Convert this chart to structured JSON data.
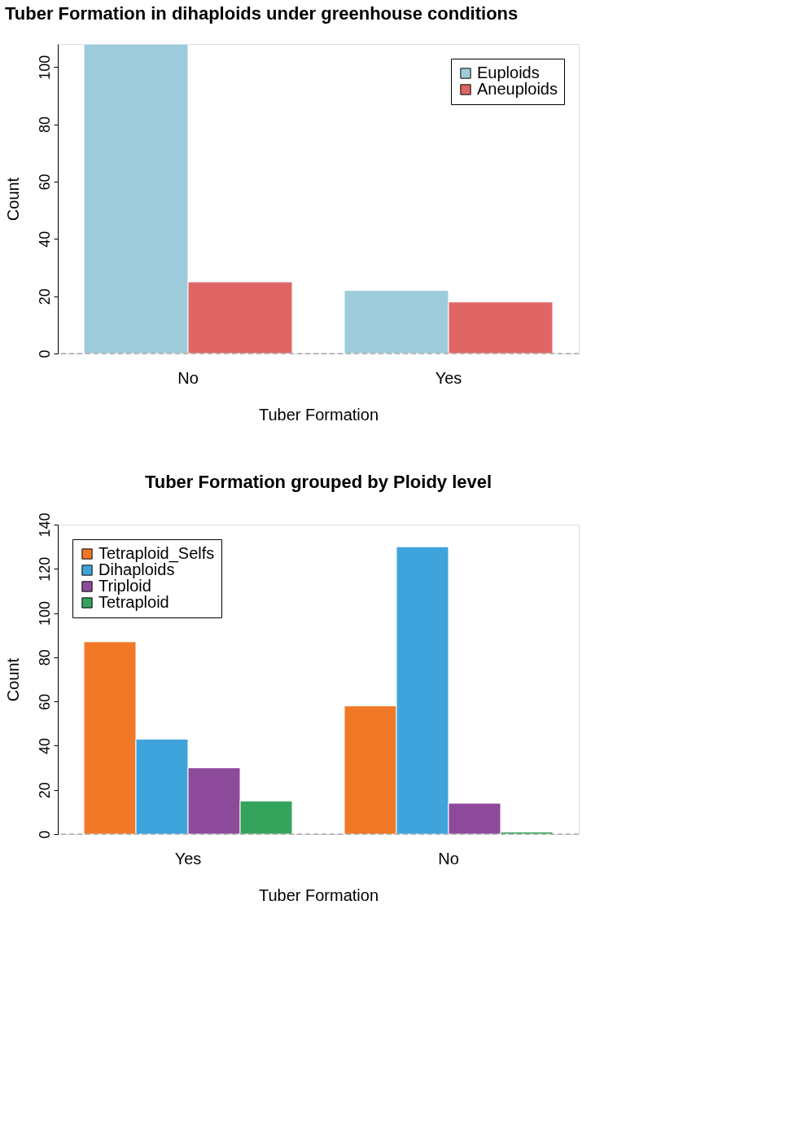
{
  "chart_data": [
    {
      "type": "bar",
      "title": "Tuber Formation in dihaploids under greenhouse conditions",
      "xlabel": "Tuber Formation",
      "ylabel": "Count",
      "categories": [
        "No",
        "Yes"
      ],
      "series": [
        {
          "name": "Euploids",
          "color": "#9ecbdb",
          "values": [
            108,
            22
          ]
        },
        {
          "name": "Aneuploids",
          "color": "#e06666",
          "values": [
            25,
            18
          ]
        }
      ],
      "ylim": [
        0,
        108
      ],
      "yticks": [
        0,
        20,
        40,
        60,
        80,
        100
      ],
      "grid": false,
      "legend": "top right",
      "ref_lines": [
        {
          "axis": "y",
          "value": 0,
          "line_style": "dashed",
          "color": "#888888"
        }
      ]
    },
    {
      "type": "bar",
      "title": "Tuber Formation grouped by Ploidy level",
      "xlabel": "Tuber Formation",
      "ylabel": "Count",
      "categories": [
        "Yes",
        "No"
      ],
      "series": [
        {
          "name": "Tetraploid_Selfs",
          "color": "#f07826",
          "values": [
            87,
            58
          ]
        },
        {
          "name": "Dihaploids",
          "color": "#3fa4dc",
          "values": [
            43,
            130
          ]
        },
        {
          "name": "Triploid",
          "color": "#8e4a9a",
          "values": [
            30,
            14
          ]
        },
        {
          "name": "Tetraploid",
          "color": "#34a35c",
          "values": [
            15,
            1
          ]
        }
      ],
      "ylim": [
        0,
        140
      ],
      "yticks": [
        0,
        20,
        40,
        60,
        80,
        100,
        120,
        140
      ],
      "grid": false,
      "legend": "top left",
      "ref_lines": [
        {
          "axis": "y",
          "value": 0,
          "line_style": "dashed",
          "color": "#888888"
        }
      ]
    }
  ]
}
